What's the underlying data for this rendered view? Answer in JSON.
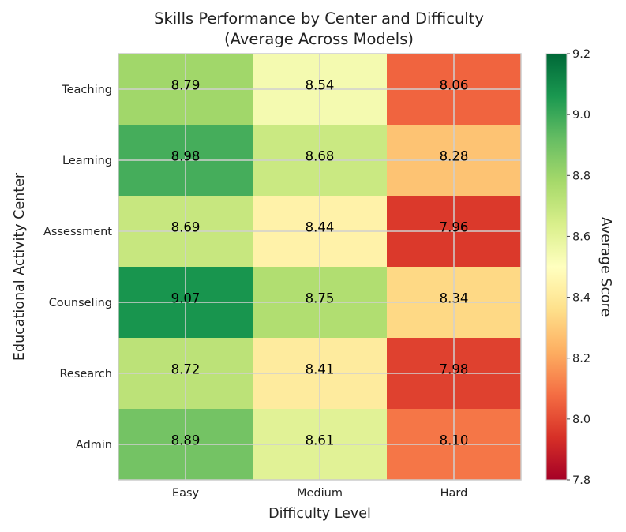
{
  "chart_data": {
    "type": "heatmap",
    "title": [
      "Skills Performance by Center and Difficulty",
      "(Average Across Models)"
    ],
    "xlabel": "Difficulty Level",
    "ylabel": "Educational Activity Center",
    "x_categories": [
      "Easy",
      "Medium",
      "Hard"
    ],
    "y_categories": [
      "Teaching",
      "Learning",
      "Assessment",
      "Counseling",
      "Research",
      "Admin"
    ],
    "values": [
      [
        8.79,
        8.54,
        8.06
      ],
      [
        8.98,
        8.68,
        8.28
      ],
      [
        8.69,
        8.44,
        7.96
      ],
      [
        9.07,
        8.75,
        8.34
      ],
      [
        8.72,
        8.41,
        7.98
      ],
      [
        8.89,
        8.61,
        8.1
      ]
    ],
    "value_labels": [
      [
        "8.79",
        "8.54",
        "8.06"
      ],
      [
        "8.98",
        "8.68",
        "8.28"
      ],
      [
        "8.69",
        "8.44",
        "7.96"
      ],
      [
        "9.07",
        "8.75",
        "8.34"
      ],
      [
        "8.72",
        "8.41",
        "7.98"
      ],
      [
        "8.89",
        "8.61",
        "8.10"
      ]
    ],
    "colormap": "RdYlGn",
    "vmin": 7.8,
    "vmax": 9.2,
    "colorbar_label": "Average Score",
    "colorbar_ticks": [
      "7.8",
      "8.0",
      "8.2",
      "8.4",
      "8.6",
      "8.8",
      "9.0",
      "9.2"
    ],
    "grid": true
  }
}
